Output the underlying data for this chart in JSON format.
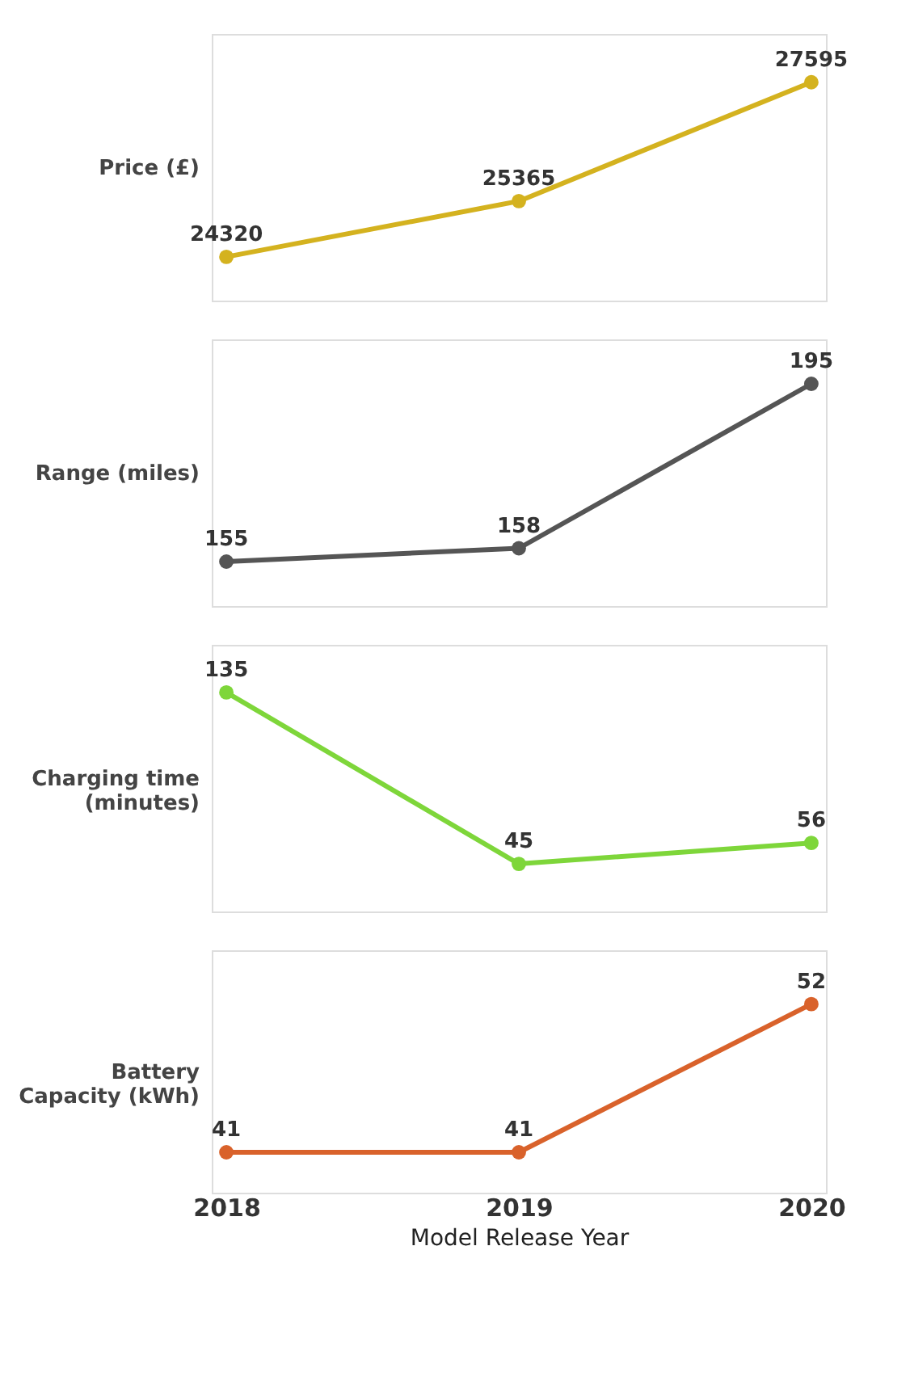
{
  "chart_data": [
    {
      "type": "line",
      "ylabel": "Price (£)",
      "categories": [
        "2018",
        "2019",
        "2020"
      ],
      "values": [
        24320,
        25365,
        27595
      ],
      "color": "#d4b21f",
      "data_labels": true,
      "marker": "circle",
      "tick_labels": false,
      "grid": false
    },
    {
      "type": "line",
      "ylabel": "Range (miles)",
      "categories": [
        "2018",
        "2019",
        "2020"
      ],
      "values": [
        155,
        158,
        195
      ],
      "color": "#555555",
      "data_labels": true,
      "marker": "circle",
      "tick_labels": false,
      "grid": false
    },
    {
      "type": "line",
      "ylabel": "Charging time (minutes)",
      "categories": [
        "2018",
        "2019",
        "2020"
      ],
      "values": [
        135,
        45,
        56
      ],
      "color": "#7ed63a",
      "data_labels": true,
      "marker": "circle",
      "tick_labels": false,
      "grid": false
    },
    {
      "type": "line",
      "ylabel": "Battery Capacity (kWh)",
      "xlabel": "Model Release Year",
      "categories": [
        "2018",
        "2019",
        "2020"
      ],
      "values": [
        41,
        41,
        52
      ],
      "color": "#d9622b",
      "data_labels": true,
      "marker": "circle",
      "tick_labels": "x",
      "grid": false
    }
  ]
}
